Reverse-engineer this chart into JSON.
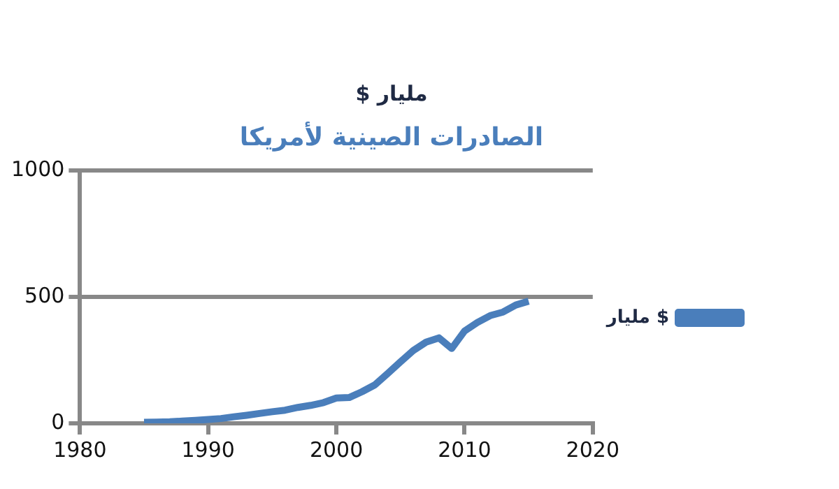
{
  "chart_data": {
    "type": "line",
    "title": "مليار $",
    "subtitle": "الصادرات الصينية لأمريكا",
    "x": [
      1985,
      1986,
      1987,
      1988,
      1989,
      1990,
      1991,
      1992,
      1993,
      1994,
      1995,
      1996,
      1997,
      1998,
      1999,
      2000,
      2001,
      2002,
      2003,
      2004,
      2005,
      2006,
      2007,
      2008,
      2009,
      2010,
      2011,
      2012,
      2013,
      2014,
      2015
    ],
    "series": [
      {
        "name": "مليار $",
        "color": "#4a7ebb",
        "values": [
          4,
          5,
          6,
          9,
          12,
          15,
          19,
          26,
          32,
          39,
          46,
          52,
          63,
          71,
          82,
          100,
          102,
          125,
          152,
          197,
          243,
          288,
          321,
          338,
          296,
          365,
          399,
          426,
          440,
          468,
          483
        ]
      }
    ],
    "xlim": [
      1980,
      2020
    ],
    "xticks": [
      1980,
      1990,
      2000,
      2010,
      2020
    ],
    "ylim": [
      0,
      1000
    ],
    "yticks": [
      0,
      500,
      1000
    ],
    "grid": "y",
    "legend": "right",
    "marker": "none",
    "line_style": "solid"
  }
}
